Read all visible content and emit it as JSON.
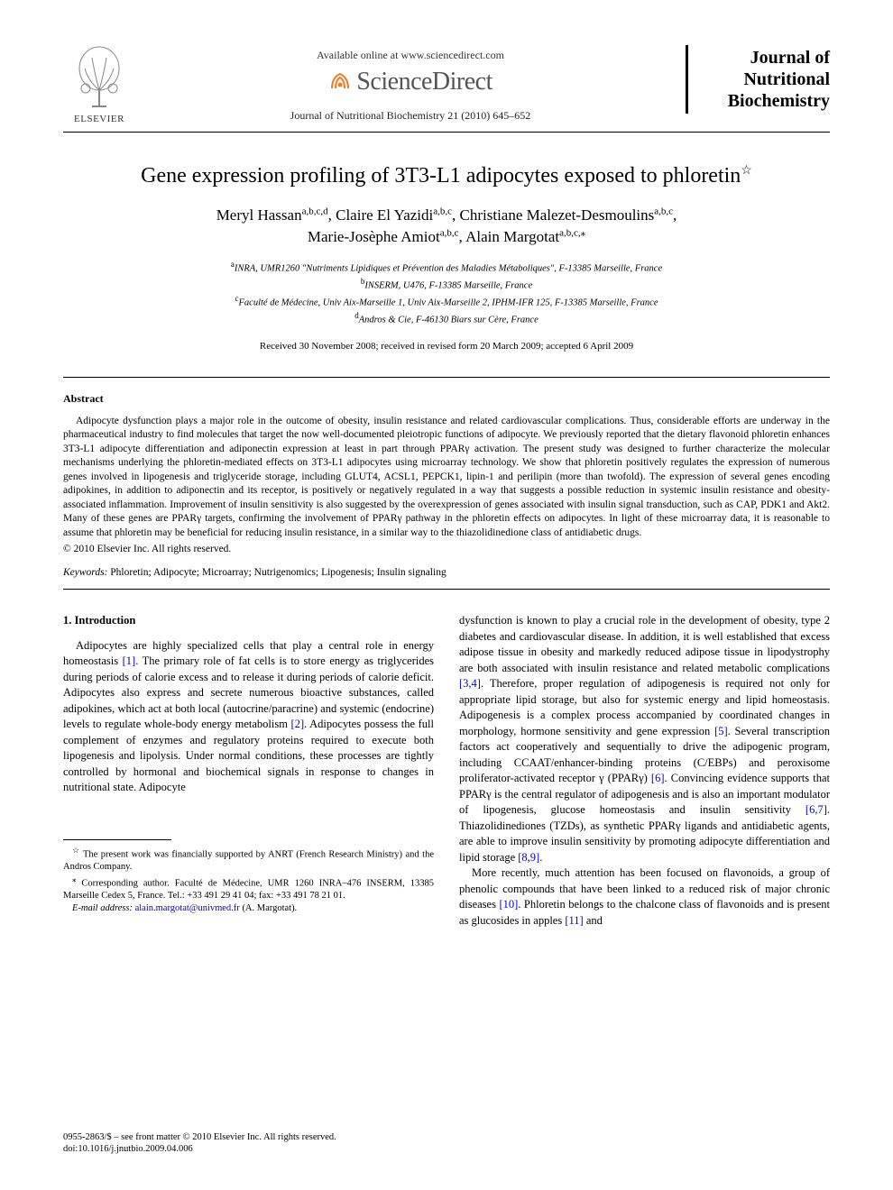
{
  "header": {
    "publisher_name": "ELSEVIER",
    "available_online": "Available online at www.sciencedirect.com",
    "platform": "ScienceDirect",
    "journal_ref": "Journal of Nutritional Biochemistry 21 (2010) 645–652",
    "journal_name_line1": "Journal of",
    "journal_name_line2": "Nutritional",
    "journal_name_line3": "Biochemistry"
  },
  "title": "Gene expression profiling of 3T3-L1 adipocytes exposed to phloretin",
  "title_star": "☆",
  "authors_line1": "Meryl Hassan",
  "authors_sup1": "a,b,c,d",
  "authors_sep1": ", ",
  "authors_2": "Claire El Yazidi",
  "authors_sup2": "a,b,c",
  "authors_sep2": ", ",
  "authors_3": "Christiane Malezet-Desmoulins",
  "authors_sup3": "a,b,c",
  "authors_sep3": ",",
  "authors_4": "Marie-Josèphe Amiot",
  "authors_sup4": "a,b,c",
  "authors_sep4": ", ",
  "authors_5": "Alain Margotat",
  "authors_sup5": "a,b,c,",
  "authors_star": "⁎",
  "affiliations": {
    "a": "INRA, UMR1260 \"Nutriments Lipidiques et Prévention des Maladies Métaboliques\", F-13385 Marseille, France",
    "b": "INSERM, U476, F-13385 Marseille, France",
    "c": "Faculté de Médecine, Univ Aix-Marseille 1, Univ Aix-Marseille 2, IPHM-IFR 125, F-13385 Marseille, France",
    "d": "Andros & Cie, F-46130 Biars sur Cère, France"
  },
  "dates": "Received 30 November 2008; received in revised form 20 March 2009; accepted 6 April 2009",
  "abstract_heading": "Abstract",
  "abstract": "Adipocyte dysfunction plays a major role in the outcome of obesity, insulin resistance and related cardiovascular complications. Thus, considerable efforts are underway in the pharmaceutical industry to find molecules that target the now well-documented pleiotropic functions of adipocyte. We previously reported that the dietary flavonoid phloretin enhances 3T3-L1 adipocyte differentiation and adiponectin expression at least in part through PPARγ activation. The present study was designed to further characterize the molecular mechanisms underlying the phloretin-mediated effects on 3T3-L1 adipocytes using microarray technology. We show that phloretin positively regulates the expression of numerous genes involved in lipogenesis and triglyceride storage, including GLUT4, ACSL1, PEPCK1, lipin-1 and perilipin (more than twofold). The expression of several genes encoding adipokines, in addition to adiponectin and its receptor, is positively or negatively regulated in a way that suggests a possible reduction in systemic insulin resistance and obesity-associated inflammation. Improvement of insulin sensitivity is also suggested by the overexpression of genes associated with insulin signal transduction, such as CAP, PDK1 and Akt2. Many of these genes are PPARγ targets, confirming the involvement of PPARγ pathway in the phloretin effects on adipocytes. In light of these microarray data, it is reasonable to assume that phloretin may be beneficial for reducing insulin resistance, in a similar way to the thiazolidinedione class of antidiabetic drugs.",
  "copyright": "© 2010 Elsevier Inc. All rights reserved.",
  "keywords_label": "Keywords:",
  "keywords": " Phloretin; Adipocyte; Microarray; Nutrigenomics; Lipogenesis; Insulin signaling",
  "section1_heading": "1. Introduction",
  "col1_para": "Adipocytes are highly specialized cells that play a central role in energy homeostasis [1]. The primary role of fat cells is to store energy as triglycerides during periods of calorie excess and to release it during periods of calorie deficit. Adipocytes also express and secrete numerous bioactive substances, called adipokines, which act at both local (autocrine/paracrine) and systemic (endocrine) levels to regulate whole-body energy metabolism [2]. Adipocytes possess the full complement of enzymes and regulatory proteins required to execute both lipogenesis and lipolysis. Under normal conditions, these processes are tightly controlled by hormonal and biochemical signals in response to changes in nutritional state. Adipocyte",
  "col2_para1": "dysfunction is known to play a crucial role in the development of obesity, type 2 diabetes and cardiovascular disease. In addition, it is well established that excess adipose tissue in obesity and markedly reduced adipose tissue in lipodystrophy are both associated with insulin resistance and related metabolic complications [3,4]. Therefore, proper regulation of adipogenesis is required not only for appropriate lipid storage, but also for systemic energy and lipid homeostasis. Adipogenesis is a complex process accompanied by coordinated changes in morphology, hormone sensitivity and gene expression [5]. Several transcription factors act cooperatively and sequentially to drive the adipogenic program, including CCAAT/enhancer-binding proteins (C/EBPs) and peroxisome proliferator-activated receptor γ (PPARγ) [6]. Convincing evidence supports that PPARγ is the central regulator of adipogenesis and is also an important modulator of lipogenesis, glucose homeostasis and insulin sensitivity [6,7]. Thiazolidinediones (TZDs), as synthetic PPARγ ligands and antidiabetic agents, are able to improve insulin sensitivity by promoting adipocyte differentiation and lipid storage [8,9].",
  "col2_para2": "More recently, much attention has been focused on flavonoids, a group of phenolic compounds that have been linked to a reduced risk of major chronic diseases [10]. Phloretin belongs to the chalcone class of flavonoids and is present as glucosides in apples [11] and",
  "footnotes": {
    "funding_star": "☆",
    "funding": " The present work was financially supported by ANRT (French Research Ministry) and the Andros Company.",
    "corr_star": "⁎",
    "corresponding": " Corresponding author. Faculté de Médecine, UMR 1260 INRA–476 INSERM, 13385 Marseille Cedex 5, France. Tel.: +33 491 29 41 04; fax: +33 491 78 21 01.",
    "email_label": "E-mail address:",
    "email": "alain.margotat@univmed.fr",
    "email_author": " (A. Margotat)."
  },
  "footer": {
    "line1": "0955-2863/$ – see front matter © 2010 Elsevier Inc. All rights reserved.",
    "line2": "doi:10.1016/j.jnutbio.2009.04.006"
  },
  "colors": {
    "text": "#000000",
    "link": "#0000cc",
    "background": "#ffffff",
    "elsevier_orange": "#e67817",
    "sd_orange": "#f47920",
    "sd_gray": "#555555"
  },
  "refs_col1": [
    "[1]",
    "[2]"
  ],
  "refs_col2": [
    "[3,4]",
    "[5]",
    "[6]",
    "[6,7]",
    "[8,9]",
    "[10]",
    "[11]"
  ]
}
